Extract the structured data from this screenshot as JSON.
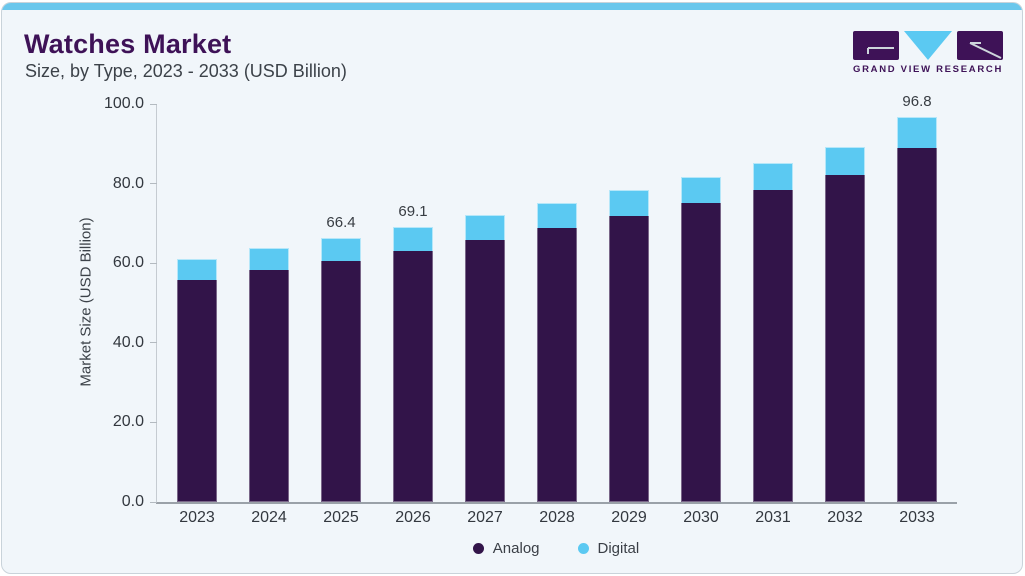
{
  "header": {
    "title": "Watches Market",
    "subtitle": "Size, by Type, 2023 - 2033 (USD Billion)"
  },
  "logo": {
    "text": "GRAND VIEW RESEARCH"
  },
  "colors": {
    "accent_bar": "#6ac7ec",
    "analog": "#321449",
    "digital": "#5bc9f2",
    "title_purple": "#3e1257",
    "card_background": "#f1f6fa",
    "axis_text": "#33383f"
  },
  "chart_data": {
    "type": "bar",
    "stacked": true,
    "title": "Watches Market",
    "subtitle": "Size, by Type, 2023 - 2033 (USD Billion)",
    "categories": [
      "2023",
      "2024",
      "2025",
      "2026",
      "2027",
      "2028",
      "2029",
      "2030",
      "2031",
      "2032",
      "2033"
    ],
    "series": [
      {
        "name": "Analog",
        "color": "#321449",
        "values": [
          55.6,
          58.1,
          60.6,
          63.1,
          65.8,
          68.7,
          71.9,
          75.0,
          78.3,
          82.0,
          89.1
        ]
      },
      {
        "name": "Digital",
        "color": "#5bc9f2",
        "values": [
          5.4,
          5.6,
          5.8,
          6.0,
          6.3,
          6.3,
          6.5,
          6.6,
          6.9,
          7.1,
          7.7
        ]
      }
    ],
    "totals": [
      61.0,
      63.7,
      66.4,
      69.1,
      72.1,
      75.0,
      78.4,
      81.6,
      85.2,
      89.1,
      96.8
    ],
    "bar_total_labels": [
      null,
      null,
      "66.4",
      "69.1",
      null,
      null,
      null,
      null,
      null,
      null,
      "96.8"
    ],
    "ylabel": "Market Size (USD Billion)",
    "xlabel": "",
    "ylim": [
      0,
      100
    ],
    "ytick_values": [
      100,
      80,
      60,
      40,
      20,
      0
    ],
    "ytick_labels": [
      "100.0",
      "80.0",
      "60.0",
      "40.0",
      "20.0",
      "0.0"
    ],
    "grid": false,
    "legend": {
      "position": "bottom",
      "items": [
        "Analog",
        "Digital"
      ]
    }
  }
}
